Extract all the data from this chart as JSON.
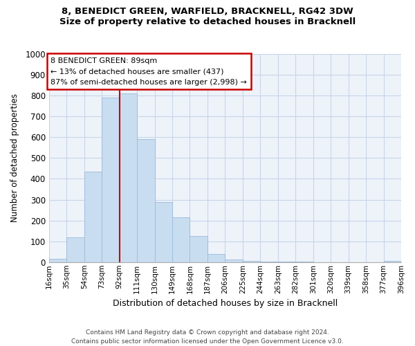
{
  "title": "8, BENEDICT GREEN, WARFIELD, BRACKNELL, RG42 3DW",
  "subtitle": "Size of property relative to detached houses in Bracknell",
  "xlabel": "Distribution of detached houses by size in Bracknell",
  "ylabel": "Number of detached properties",
  "bar_labels": [
    "16sqm",
    "35sqm",
    "54sqm",
    "73sqm",
    "92sqm",
    "111sqm",
    "130sqm",
    "149sqm",
    "168sqm",
    "187sqm",
    "206sqm",
    "225sqm",
    "244sqm",
    "263sqm",
    "282sqm",
    "301sqm",
    "320sqm",
    "339sqm",
    "358sqm",
    "377sqm",
    "396sqm"
  ],
  "bar_values": [
    15,
    120,
    435,
    790,
    810,
    590,
    290,
    215,
    125,
    40,
    13,
    5,
    2,
    1,
    1,
    0,
    0,
    0,
    0,
    5
  ],
  "bar_color": "#c9ddf0",
  "bar_edge_color": "#9bbad8",
  "vline_color": "#cc0000",
  "annotation_title": "8 BENEDICT GREEN: 89sqm",
  "annotation_line1": "← 13% of detached houses are smaller (437)",
  "annotation_line2": "87% of semi-detached houses are larger (2,998) →",
  "annotation_box_edge": "#cc0000",
  "plot_bg_color": "#eef3fa",
  "grid_color": "#c8d4e8",
  "ylim": [
    0,
    1000
  ],
  "yticks": [
    0,
    100,
    200,
    300,
    400,
    500,
    600,
    700,
    800,
    900,
    1000
  ],
  "footer1": "Contains HM Land Registry data © Crown copyright and database right 2024.",
  "footer2": "Contains public sector information licensed under the Open Government Licence v3.0."
}
